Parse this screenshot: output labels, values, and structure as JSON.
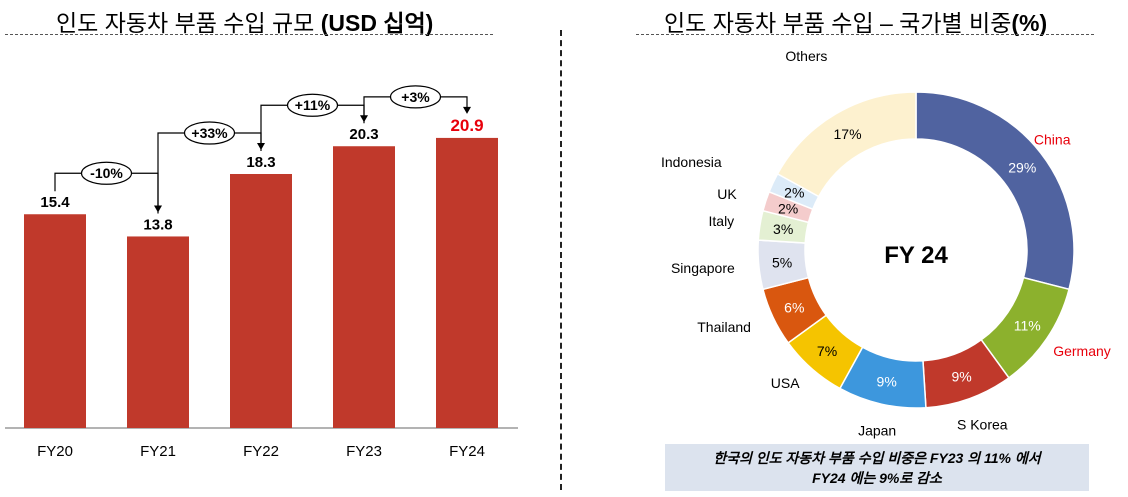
{
  "titles": {
    "bar": "인도 자동차 부품 수입 규모",
    "bar_suffix": "(USD 십억)",
    "pie": "인도 자동차 부품 수입 – 국가별 비중",
    "pie_suffix": "(%)"
  },
  "chart_data": [
    {
      "type": "bar",
      "title": "인도 자동차 부품 수입 규모 (USD 십억)",
      "categories": [
        "FY20",
        "FY21",
        "FY22",
        "FY23",
        "FY24"
      ],
      "values": [
        15.4,
        13.8,
        18.3,
        20.3,
        20.9
      ],
      "value_labels": [
        "15.4",
        "13.8",
        "18.3",
        "20.3",
        "20.9"
      ],
      "highlight_index": 4,
      "bar_color": "#c0392b",
      "highlight_label_color": "#e8000b",
      "ylim": [
        0,
        25
      ],
      "growth_annotations": [
        "-10%",
        "+33%",
        "+11%",
        "+3%"
      ]
    },
    {
      "type": "pie",
      "title": "인도 자동차 부품 수입 – 국가별 비중(%)",
      "center_label": "FY 24",
      "slices": [
        {
          "name": "China",
          "value": 29,
          "label": "29%",
          "color": "#5063a0",
          "name_color": "#e8000b",
          "label_color": "#ffffff"
        },
        {
          "name": "Germany",
          "value": 11,
          "label": "11%",
          "color": "#8cb12d",
          "name_color": "#e8000b",
          "label_color": "#ffffff"
        },
        {
          "name": "S Korea",
          "value": 9,
          "label": "9%",
          "color": "#c0392b",
          "name_color": "#000000",
          "label_color": "#ffffff"
        },
        {
          "name": "Japan",
          "value": 9,
          "label": "9%",
          "color": "#3d97dd",
          "name_color": "#000000",
          "label_color": "#ffffff"
        },
        {
          "name": "USA",
          "value": 7,
          "label": "7%",
          "color": "#f5c400",
          "name_color": "#000000",
          "label_color": "#000000"
        },
        {
          "name": "Thailand",
          "value": 6,
          "label": "6%",
          "color": "#d9570f",
          "name_color": "#000000",
          "label_color": "#ffffff"
        },
        {
          "name": "Singapore",
          "value": 5,
          "label": "5%",
          "color": "#dfe3ef",
          "name_color": "#000000",
          "label_color": "#000000"
        },
        {
          "name": "Italy",
          "value": 3,
          "label": "3%",
          "color": "#e4f0d3",
          "name_color": "#000000",
          "label_color": "#000000"
        },
        {
          "name": "UK",
          "value": 2,
          "label": "2%",
          "color": "#f4cccc",
          "name_color": "#000000",
          "label_color": "#000000"
        },
        {
          "name": "Indonesia",
          "value": 2,
          "label": "2%",
          "color": "#dcebf8",
          "name_color": "#000000",
          "label_color": "#000000"
        },
        {
          "name": "Others",
          "value": 17,
          "label": "17%",
          "color": "#fdf1cf",
          "name_color": "#000000",
          "label_color": "#000000"
        }
      ]
    }
  ],
  "note": {
    "line1": "한국의 인도 자동차 부품 수입 비중은 FY23 의 11% 에서",
    "line2": "FY24 에는 9%로 감소"
  }
}
